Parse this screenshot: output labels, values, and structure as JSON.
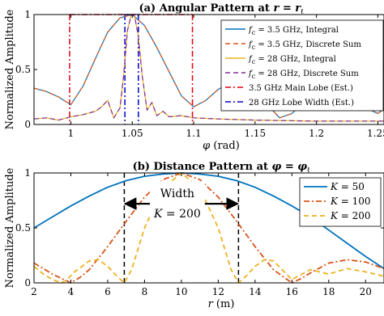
{
  "chart_data": [
    {
      "type": "line",
      "title": "(a) Angular Pattern at r = rℓ",
      "xlabel": "φ (rad)",
      "ylabel": "Normalized Amplitude",
      "xlim": [
        0.97,
        1.255
      ],
      "ylim": [
        0,
        1
      ],
      "x_ticks": [
        1,
        1.05,
        1.1,
        1.15,
        1.2,
        1.25
      ],
      "x_tick_labels": [
        "1",
        "1.05",
        "1.1",
        "1.15",
        "1.2",
        "1.25"
      ],
      "y_ticks": [
        0,
        0.5,
        1
      ],
      "y_tick_labels": [
        "0",
        "0.5",
        "1"
      ],
      "legend_position": "top-right",
      "series": [
        {
          "name": "fc = 3.5 GHz, Integral",
          "color": "#0072BD",
          "style": "solid",
          "x": [
            0.97,
            0.98,
            0.99,
            1.0,
            1.01,
            1.02,
            1.03,
            1.04,
            1.05,
            1.06,
            1.07,
            1.08,
            1.09,
            1.1,
            1.11,
            1.12,
            1.13,
            1.14,
            1.15,
            1.16,
            1.17,
            1.18,
            1.19,
            1.2,
            1.21,
            1.22,
            1.23,
            1.24,
            1.25,
            1.255
          ],
          "y": [
            0.33,
            0.3,
            0.25,
            0.18,
            0.35,
            0.6,
            0.84,
            0.97,
            1.0,
            0.9,
            0.7,
            0.48,
            0.26,
            0.16,
            0.22,
            0.32,
            0.38,
            0.36,
            0.29,
            0.18,
            0.06,
            0.1,
            0.2,
            0.29,
            0.33,
            0.3,
            0.24,
            0.15,
            0.1,
            0.14
          ]
        },
        {
          "name": "fc = 3.5 GHz, Discrete Sum",
          "color": "#D95319",
          "style": "dashed",
          "x": [
            0.97,
            0.98,
            0.99,
            1.0,
            1.01,
            1.02,
            1.03,
            1.04,
            1.05,
            1.06,
            1.07,
            1.08,
            1.09,
            1.1,
            1.11,
            1.12,
            1.13,
            1.14,
            1.15,
            1.16,
            1.17,
            1.18,
            1.19,
            1.2,
            1.21,
            1.22,
            1.23,
            1.24,
            1.25,
            1.255
          ],
          "y": [
            0.33,
            0.3,
            0.25,
            0.18,
            0.35,
            0.6,
            0.84,
            0.97,
            1.0,
            0.9,
            0.7,
            0.48,
            0.26,
            0.16,
            0.22,
            0.32,
            0.38,
            0.36,
            0.29,
            0.18,
            0.06,
            0.1,
            0.2,
            0.29,
            0.33,
            0.3,
            0.24,
            0.15,
            0.1,
            0.14
          ]
        },
        {
          "name": "fc = 28 GHz, Integral",
          "color": "#EDB120",
          "style": "solid",
          "x": [
            0.97,
            0.98,
            0.99,
            1.0,
            1.01,
            1.02,
            1.025,
            1.03,
            1.035,
            1.04,
            1.043,
            1.046,
            1.049,
            1.05,
            1.052,
            1.055,
            1.058,
            1.062,
            1.066,
            1.07,
            1.075,
            1.08,
            1.09,
            1.1,
            1.12,
            1.15,
            1.2,
            1.255
          ],
          "y": [
            0.05,
            0.06,
            0.04,
            0.07,
            0.09,
            0.12,
            0.16,
            0.22,
            0.06,
            0.15,
            0.45,
            0.85,
            0.99,
            1.0,
            0.98,
            0.8,
            0.45,
            0.13,
            0.2,
            0.08,
            0.12,
            0.07,
            0.08,
            0.06,
            0.05,
            0.04,
            0.03,
            0.03
          ]
        },
        {
          "name": "fc = 28 GHz, Discrete Sum",
          "color": "#7E2F8E",
          "style": "dashed",
          "x": [
            0.97,
            0.98,
            0.99,
            1.0,
            1.01,
            1.02,
            1.025,
            1.03,
            1.035,
            1.04,
            1.043,
            1.046,
            1.049,
            1.05,
            1.052,
            1.055,
            1.058,
            1.062,
            1.066,
            1.07,
            1.075,
            1.08,
            1.09,
            1.1,
            1.12,
            1.15,
            1.2,
            1.255
          ],
          "y": [
            0.05,
            0.06,
            0.04,
            0.07,
            0.09,
            0.12,
            0.16,
            0.22,
            0.06,
            0.15,
            0.45,
            0.85,
            0.99,
            1.0,
            0.98,
            0.8,
            0.45,
            0.13,
            0.2,
            0.08,
            0.12,
            0.07,
            0.08,
            0.06,
            0.05,
            0.04,
            0.03,
            0.03
          ]
        }
      ],
      "markers": [
        {
          "name": "3.5 GHz Main Lobe (Est.)",
          "color": "#E3000F",
          "style": "dashdot",
          "x": [
            0.999,
            1.099
          ]
        },
        {
          "name": "28 GHz Lobe Width (Est.)",
          "color": "#0000CC",
          "style": "dashdot",
          "x": [
            1.044,
            1.055
          ]
        }
      ],
      "legend_labels": [
        {
          "pre": "f",
          "sub": "c",
          "post": " = 3.5 GHz, Integral"
        },
        {
          "pre": "f",
          "sub": "c",
          "post": " = 3.5 GHz, Discrete Sum"
        },
        {
          "pre": "f",
          "sub": "c",
          "post": " = 28 GHz, Integral"
        },
        {
          "pre": "f",
          "sub": "c",
          "post": " = 28 GHz, Discrete Sum"
        },
        {
          "pre": "",
          "sub": "",
          "post": "3.5 GHz Main Lobe (Est.)"
        },
        {
          "pre": "",
          "sub": "",
          "post": "28 GHz Lobe Width (Est.)"
        }
      ]
    },
    {
      "type": "line",
      "title": "(b) Distance Pattern at φ = φℓ",
      "xlabel": "r (m)",
      "ylabel": "Normalized Amplitude",
      "xlim": [
        2,
        21
      ],
      "ylim": [
        0,
        1
      ],
      "x_ticks": [
        2,
        4,
        6,
        8,
        10,
        12,
        14,
        16,
        18,
        20
      ],
      "x_tick_labels": [
        "2",
        "4",
        "6",
        "8",
        "10",
        "12",
        "14",
        "16",
        "18",
        "20"
      ],
      "y_ticks": [
        0,
        0.5,
        1
      ],
      "y_tick_labels": [
        "0",
        "0.5",
        "1"
      ],
      "legend_position": "top-right",
      "series": [
        {
          "name": "K = 50",
          "color": "#0072BD",
          "style": "solid",
          "x": [
            2,
            3,
            4,
            5,
            6,
            7,
            8,
            9,
            10,
            11,
            12,
            13,
            14,
            15,
            16,
            17,
            18,
            19,
            20,
            21
          ],
          "y": [
            0.5,
            0.6,
            0.7,
            0.79,
            0.87,
            0.93,
            0.97,
            0.99,
            1.0,
            0.99,
            0.97,
            0.93,
            0.87,
            0.79,
            0.7,
            0.6,
            0.48,
            0.36,
            0.24,
            0.13
          ]
        },
        {
          "name": "K = 100",
          "color": "#D95319",
          "style": "dashdot",
          "x": [
            2,
            2.5,
            3,
            3.5,
            4,
            4.5,
            5,
            6,
            7,
            8,
            9,
            10,
            11,
            12,
            13,
            14,
            15,
            16,
            16.5,
            17,
            18,
            19,
            20,
            21
          ],
          "y": [
            0.18,
            0.13,
            0.08,
            0.04,
            0.0,
            0.05,
            0.12,
            0.33,
            0.56,
            0.78,
            0.94,
            1.0,
            0.94,
            0.78,
            0.56,
            0.33,
            0.12,
            0.0,
            0.04,
            0.09,
            0.18,
            0.21,
            0.19,
            0.13
          ]
        },
        {
          "name": "K = 200",
          "color": "#EDB120",
          "style": "dashed",
          "x": [
            2,
            2.5,
            3,
            3.5,
            3.8,
            4.2,
            5,
            5.5,
            6,
            6.5,
            6.9,
            7.3,
            8,
            9,
            10,
            11,
            12,
            12.7,
            13.1,
            13.5,
            14,
            14.5,
            15,
            16,
            17,
            18,
            19,
            20,
            21
          ],
          "y": [
            0.15,
            0.08,
            0.03,
            0.0,
            0.03,
            0.1,
            0.2,
            0.21,
            0.15,
            0.06,
            0.0,
            0.12,
            0.5,
            0.86,
            1.0,
            0.86,
            0.5,
            0.12,
            0.0,
            0.06,
            0.15,
            0.21,
            0.2,
            0.03,
            0.12,
            0.08,
            0.13,
            0.1,
            0.06
          ]
        }
      ],
      "markers": [
        {
          "color": "#000000",
          "style": "dashed",
          "x": [
            6.9,
            13.1
          ]
        }
      ],
      "annotation": {
        "text": "Width",
        "k_label": "K = 200"
      },
      "legend_labels": [
        {
          "pre": "K",
          "sub": "",
          "post": " = 50"
        },
        {
          "pre": "K",
          "sub": "",
          "post": " = 100"
        },
        {
          "pre": "K",
          "sub": "",
          "post": " = 200"
        }
      ]
    }
  ]
}
